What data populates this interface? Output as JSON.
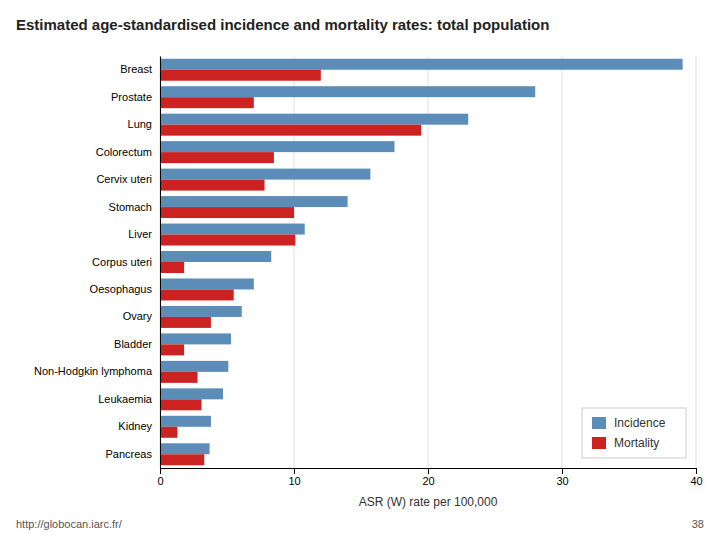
{
  "chart_data": {
    "type": "bar",
    "orientation": "horizontal",
    "title": "Estimated age-standardised incidence and mortality rates: total population",
    "xlabel": "ASR (W) rate per 100,000",
    "annotations": [
      "http://globocan.iarc.fr/",
      "38"
    ],
    "categories": [
      "Breast",
      "Prostate",
      "Lung",
      "Colorectum",
      "Cervix uteri",
      "Stomach",
      "Liver",
      "Corpus uteri",
      "Oesophagus",
      "Ovary",
      "Bladder",
      "Non-Hodgkin lymphoma",
      "Leukaemia",
      "Kidney",
      "Pancreas"
    ],
    "series": [
      {
        "name": "Incidence",
        "color": "#5B8DB8",
        "values": [
          39.0,
          28.0,
          23.0,
          17.5,
          15.7,
          14.0,
          10.8,
          8.3,
          7.0,
          6.1,
          5.3,
          5.1,
          4.7,
          3.8,
          3.7
        ]
      },
      {
        "name": "Mortality",
        "color": "#CC2222",
        "values": [
          12.0,
          7.0,
          19.5,
          8.5,
          7.8,
          10.0,
          10.1,
          1.8,
          5.5,
          3.8,
          1.8,
          2.8,
          3.1,
          1.3,
          3.3
        ]
      }
    ],
    "xlim": [
      0,
      40
    ],
    "xticks": [
      0,
      10,
      20,
      30,
      40
    ],
    "grid": true,
    "legend": "lower right"
  }
}
